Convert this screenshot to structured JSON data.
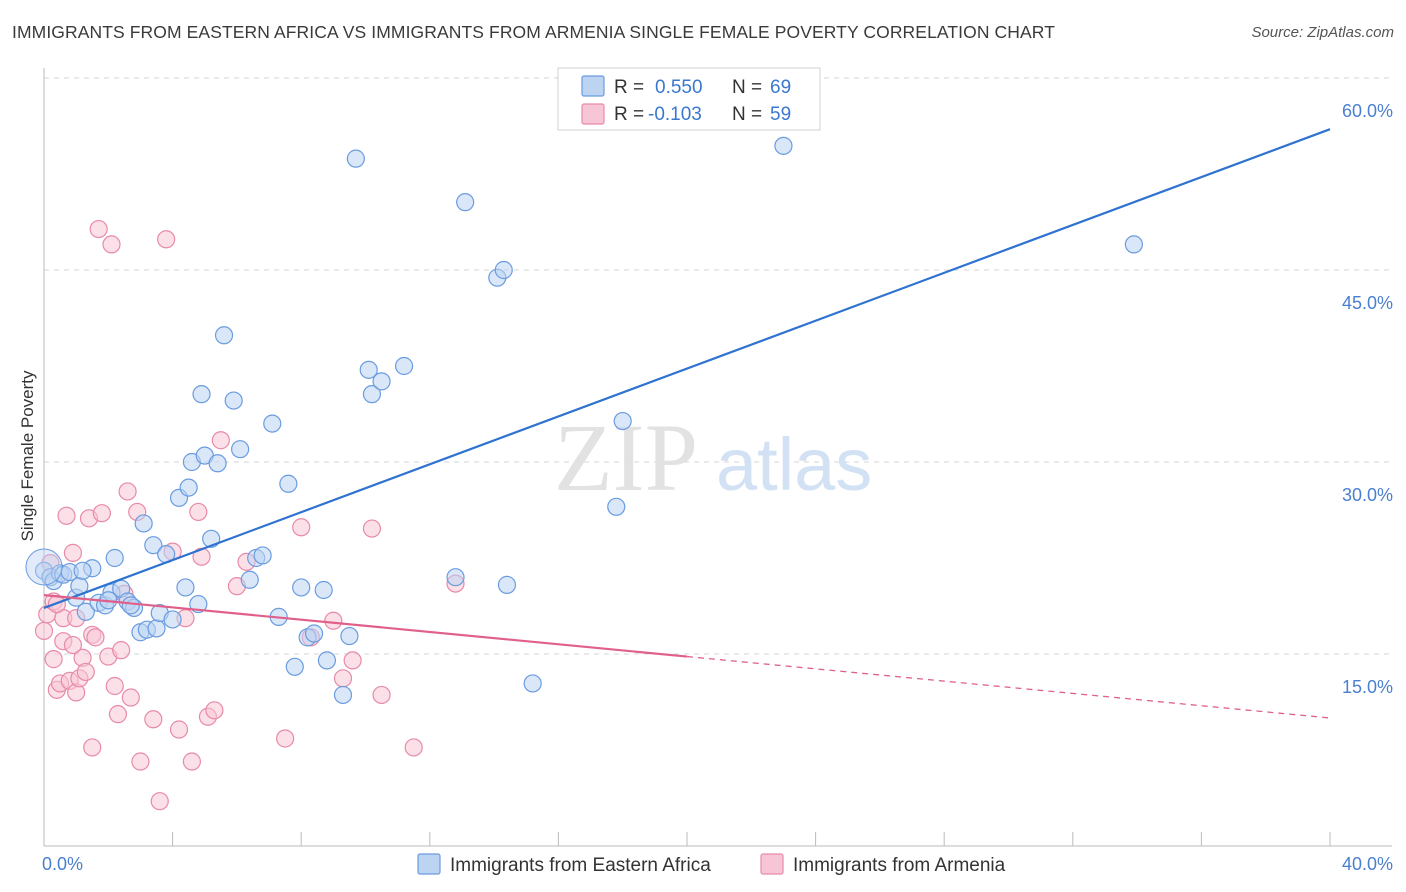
{
  "title": "IMMIGRANTS FROM EASTERN AFRICA VS IMMIGRANTS FROM ARMENIA SINGLE FEMALE POVERTY CORRELATION CHART",
  "source": "Source: ZipAtlas.com",
  "watermark": {
    "zip": "ZIP",
    "atlas": "atlas"
  },
  "colors": {
    "blue_fill": "#bcd3f2",
    "blue_stroke": "#6a9ce0",
    "blue_line": "#2f73d0",
    "pink_fill": "#f7c6d6",
    "pink_stroke": "#e88aaa",
    "pink_line": "#e0608a",
    "grid": "#d6d6d6",
    "axis_text": "#4a7fd0"
  },
  "legend": {
    "rows": [
      {
        "r_label": "R = ",
        "r_value": "0.550",
        "n_label": "N = ",
        "n_value": "69"
      },
      {
        "r_label": "R = ",
        "r_value": "-0.103",
        "n_label": "N = ",
        "n_value": "59"
      }
    ]
  },
  "chart_data": {
    "type": "scatter",
    "xlabel": "",
    "ylabel": "Single Female Poverty",
    "xlim": [
      0,
      40
    ],
    "ylim": [
      0,
      60
    ],
    "x_tick_labels": [
      "0.0%",
      "40.0%"
    ],
    "y_ticks": [
      15,
      30,
      45,
      60
    ],
    "y_tick_labels": [
      "15.0%",
      "30.0%",
      "45.0%",
      "60.0%"
    ],
    "grid": true,
    "legend_position": "top-center",
    "series": [
      {
        "name": "Immigrants from Eastern Africa",
        "r": 0.55,
        "n": 69,
        "trend": {
          "x0": 0,
          "y0": 18.6,
          "x1": 40,
          "y1": 56.0,
          "solid_to": 40
        },
        "points": [
          [
            0.0,
            21.5
          ],
          [
            0.2,
            21.0
          ],
          [
            0.3,
            20.7
          ],
          [
            0.5,
            21.3
          ],
          [
            0.6,
            21.2
          ],
          [
            0.8,
            21.4
          ],
          [
            1.0,
            19.4
          ],
          [
            1.1,
            20.3
          ],
          [
            1.3,
            18.3
          ],
          [
            1.5,
            21.7
          ],
          [
            1.7,
            19.0
          ],
          [
            1.9,
            18.8
          ],
          [
            2.1,
            19.8
          ],
          [
            2.2,
            22.5
          ],
          [
            2.4,
            20.1
          ],
          [
            2.6,
            19.1
          ],
          [
            2.8,
            18.6
          ],
          [
            3.0,
            16.7
          ],
          [
            3.2,
            16.9
          ],
          [
            3.4,
            23.5
          ],
          [
            3.5,
            17.0
          ],
          [
            3.6,
            18.2
          ],
          [
            3.8,
            22.8
          ],
          [
            4.0,
            17.7
          ],
          [
            4.2,
            27.2
          ],
          [
            4.4,
            20.2
          ],
          [
            4.5,
            28.0
          ],
          [
            4.6,
            30.0
          ],
          [
            4.8,
            18.9
          ],
          [
            4.9,
            35.3
          ],
          [
            5.0,
            30.5
          ],
          [
            5.2,
            24.0
          ],
          [
            5.4,
            29.9
          ],
          [
            5.6,
            39.9
          ],
          [
            5.9,
            34.8
          ],
          [
            6.1,
            31.0
          ],
          [
            6.4,
            20.8
          ],
          [
            6.6,
            22.5
          ],
          [
            6.8,
            22.7
          ],
          [
            7.1,
            33.0
          ],
          [
            7.3,
            17.9
          ],
          [
            7.6,
            28.3
          ],
          [
            7.8,
            14.0
          ],
          [
            8.0,
            20.2
          ],
          [
            8.2,
            16.3
          ],
          [
            8.4,
            16.6
          ],
          [
            8.7,
            20.0
          ],
          [
            8.8,
            14.5
          ],
          [
            9.3,
            11.8
          ],
          [
            9.5,
            16.4
          ],
          [
            9.7,
            53.7
          ],
          [
            10.1,
            37.2
          ],
          [
            10.2,
            35.3
          ],
          [
            10.5,
            36.3
          ],
          [
            11.2,
            37.5
          ],
          [
            12.8,
            21.0
          ],
          [
            13.1,
            50.3
          ],
          [
            14.1,
            44.4
          ],
          [
            14.3,
            45.0
          ],
          [
            14.4,
            20.4
          ],
          [
            15.2,
            12.7
          ],
          [
            17.8,
            26.5
          ],
          [
            18.0,
            33.2
          ],
          [
            23.0,
            54.7
          ],
          [
            33.9,
            47.0
          ],
          [
            2.7,
            18.8
          ],
          [
            1.2,
            21.5
          ],
          [
            3.1,
            25.2
          ],
          [
            2.0,
            19.2
          ]
        ]
      },
      {
        "name": "Immigrants from Armenia",
        "r": -0.103,
        "n": 59,
        "trend": {
          "x0": 0,
          "y0": 19.6,
          "x1": 40,
          "y1": 10.0,
          "solid_to": 20
        },
        "points": [
          [
            0.0,
            16.8
          ],
          [
            0.1,
            18.1
          ],
          [
            0.2,
            22.1
          ],
          [
            0.3,
            19.1
          ],
          [
            0.3,
            14.6
          ],
          [
            0.4,
            12.2
          ],
          [
            0.5,
            12.7
          ],
          [
            0.6,
            16.0
          ],
          [
            0.6,
            17.8
          ],
          [
            0.7,
            25.8
          ],
          [
            0.8,
            12.9
          ],
          [
            0.9,
            22.9
          ],
          [
            1.0,
            12.0
          ],
          [
            1.1,
            13.1
          ],
          [
            1.2,
            14.7
          ],
          [
            1.4,
            25.6
          ],
          [
            1.5,
            7.7
          ],
          [
            1.5,
            16.5
          ],
          [
            1.6,
            16.3
          ],
          [
            1.7,
            48.2
          ],
          [
            1.8,
            26.0
          ],
          [
            2.0,
            14.8
          ],
          [
            2.1,
            47.0
          ],
          [
            2.3,
            10.3
          ],
          [
            2.4,
            15.3
          ],
          [
            2.5,
            19.7
          ],
          [
            2.6,
            27.7
          ],
          [
            2.7,
            11.6
          ],
          [
            2.9,
            26.1
          ],
          [
            3.0,
            6.6
          ],
          [
            3.4,
            9.9
          ],
          [
            3.6,
            3.5
          ],
          [
            3.8,
            47.4
          ],
          [
            4.0,
            23.0
          ],
          [
            4.2,
            9.1
          ],
          [
            4.4,
            17.8
          ],
          [
            4.6,
            6.6
          ],
          [
            4.8,
            26.1
          ],
          [
            4.9,
            22.6
          ],
          [
            5.1,
            10.1
          ],
          [
            5.3,
            10.6
          ],
          [
            5.5,
            31.7
          ],
          [
            6.0,
            20.3
          ],
          [
            6.3,
            22.2
          ],
          [
            7.5,
            8.4
          ],
          [
            8.0,
            24.9
          ],
          [
            8.3,
            16.3
          ],
          [
            9.0,
            17.6
          ],
          [
            9.3,
            13.1
          ],
          [
            9.6,
            14.5
          ],
          [
            10.2,
            24.8
          ],
          [
            10.5,
            11.8
          ],
          [
            11.5,
            7.7
          ],
          [
            12.8,
            20.5
          ],
          [
            1.0,
            17.8
          ],
          [
            0.9,
            15.7
          ],
          [
            2.2,
            12.5
          ],
          [
            0.4,
            18.9
          ],
          [
            1.3,
            13.6
          ]
        ]
      }
    ]
  }
}
